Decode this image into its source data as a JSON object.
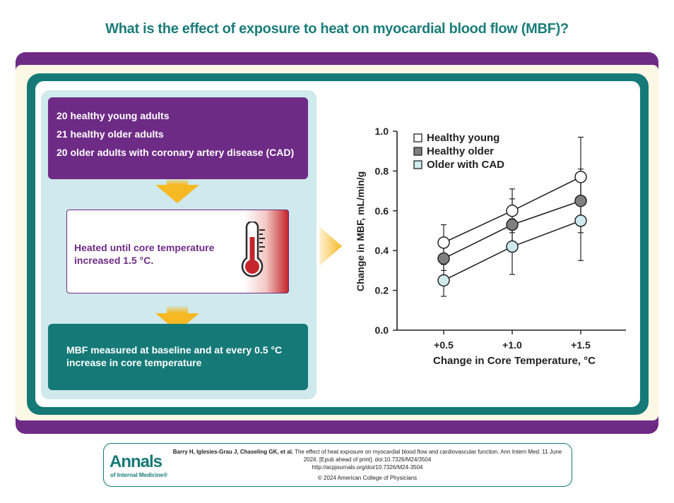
{
  "title": "What is the effect of exposure to heat on myocardial blood flow (MBF)?",
  "cohorts": [
    "20 healthy young adults",
    "21 healthy older adults",
    "20 older adults with coronary artery disease (CAD)"
  ],
  "intervention": "Heated until core temperature increased 1.5 °C.",
  "measurement": "MBF measured at baseline and at every 0.5 °C increase in core temperature",
  "colors": {
    "purple": "#6e2b86",
    "teal": "#157a77",
    "yellow": "#f6b923",
    "light_blue": "#cfe9ec",
    "thermo_red": "#c4262b"
  },
  "icons": [
    "thermometer-icon",
    "arrow-down-icon",
    "arrow-right-icon"
  ],
  "chart_data": {
    "type": "line",
    "title": "",
    "xlabel": "Change in Core Temperature, °C",
    "ylabel": "Change in MBF, mL/min/g",
    "categories": [
      "+0.5",
      "+1.0",
      "+1.5"
    ],
    "ylim": [
      0.0,
      1.0
    ],
    "yticks": [
      "0.0",
      "0.2",
      "0.4",
      "0.6",
      "0.8",
      "1.0"
    ],
    "legend_position": "top-left",
    "series": [
      {
        "name": "Healthy young",
        "values": [
          0.44,
          0.6,
          0.77
        ],
        "err_low": [
          0.35,
          0.49,
          0.57
        ],
        "err_high": [
          0.53,
          0.71,
          0.97
        ],
        "fill": "#ffffff"
      },
      {
        "name": "Healthy older",
        "values": [
          0.36,
          0.53,
          0.65
        ],
        "err_low": [
          0.3,
          0.4,
          0.49
        ],
        "err_high": [
          0.42,
          0.66,
          0.81
        ],
        "fill": "#7f7f7f"
      },
      {
        "name": "Older with CAD",
        "values": [
          0.25,
          0.42,
          0.55
        ],
        "err_low": [
          0.17,
          0.28,
          0.35
        ],
        "err_high": [
          0.33,
          0.56,
          0.75
        ],
        "fill": "#cfe9ec"
      }
    ]
  },
  "footer": {
    "logo_main": "Annals",
    "logo_sub": "of Internal Medicine®",
    "citation_authors": "Barry H, Iglesies-Grau J, Chaseling GK, et al.",
    "citation_text": "The effect of heat exposure on myocardial blood flow and cardiovascular function. Ann Intern Med. 11 June 2024. [Epub ahead of print]. doi:10.7326/M24/3504",
    "url": "http://acpjournals.org/doi/10.7326/M24-3504",
    "copyright": "© 2024 American College of Physicians"
  }
}
